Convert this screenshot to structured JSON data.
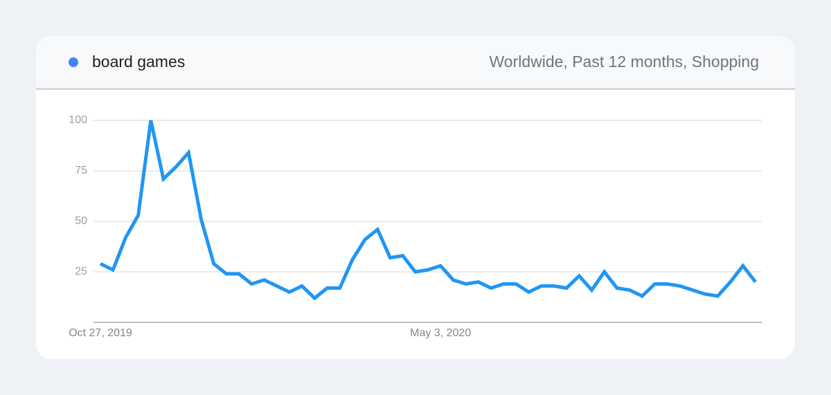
{
  "chart_data": {
    "type": "line",
    "subtitle": "Worldwide, Past 12 months, Shopping",
    "categories": [
      "Oct 27, 2019",
      null,
      null,
      null,
      null,
      null,
      null,
      null,
      null,
      null,
      null,
      null,
      null,
      null,
      null,
      null,
      null,
      null,
      null,
      null,
      null,
      null,
      null,
      null,
      null,
      null,
      null,
      "May 3, 2020",
      null,
      null,
      null,
      null,
      null,
      null,
      null,
      null,
      null,
      null,
      null,
      null,
      null,
      null,
      null,
      null,
      null,
      null,
      null,
      null,
      null,
      null,
      null,
      null,
      null
    ],
    "series": [
      {
        "name": "board games",
        "color": "#2196f3",
        "values": [
          29,
          26,
          42,
          53,
          100,
          71,
          77,
          84,
          51,
          29,
          24,
          24,
          19,
          21,
          18,
          15,
          18,
          12,
          17,
          17,
          31,
          41,
          46,
          32,
          33,
          25,
          26,
          28,
          21,
          19,
          20,
          17,
          19,
          19,
          15,
          18,
          18,
          17,
          23,
          16,
          25,
          17,
          16,
          13,
          19,
          19,
          18,
          16,
          14,
          13,
          20,
          28,
          20
        ]
      }
    ],
    "ylim": [
      0,
      100
    ],
    "yticks": [
      25,
      50,
      75,
      100
    ],
    "grid": true
  }
}
